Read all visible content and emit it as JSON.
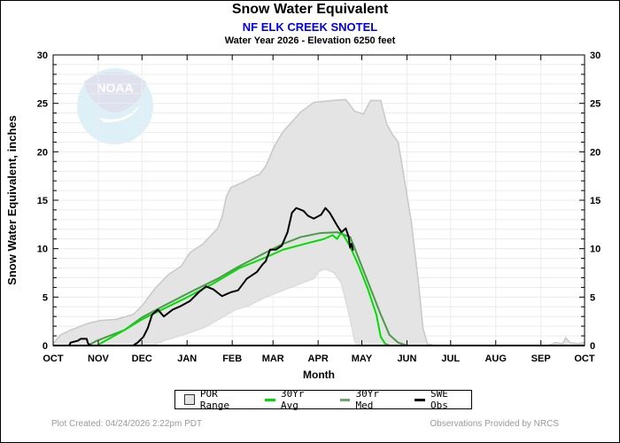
{
  "chart_data": {
    "type": "area",
    "title": "Snow Water Equivalent",
    "subtitle": "NF ELK CREEK SNOTEL",
    "subtitle2": "Water Year 2026 -  Elevation 6250 feet",
    "xlabel": "Month",
    "ylabel": "Snow Water Equivalent, inches",
    "xlim": [
      0,
      365
    ],
    "ylim": [
      0,
      30
    ],
    "yticks": [
      0,
      5,
      10,
      15,
      20,
      25,
      30
    ],
    "ytick_labels": [
      "0",
      "5",
      "10",
      "15",
      "20",
      "25",
      "30"
    ],
    "month_ticks": [
      {
        "day": 0,
        "label": "OCT"
      },
      {
        "day": 31,
        "label": "NOV"
      },
      {
        "day": 61,
        "label": "DEC"
      },
      {
        "day": 92,
        "label": "JAN"
      },
      {
        "day": 123,
        "label": "FEB"
      },
      {
        "day": 151,
        "label": "MAR"
      },
      {
        "day": 182,
        "label": "APR"
      },
      {
        "day": 212,
        "label": "MAY"
      },
      {
        "day": 243,
        "label": "JUN"
      },
      {
        "day": 273,
        "label": "JUL"
      },
      {
        "day": 304,
        "label": "AUG"
      },
      {
        "day": 335,
        "label": "SEP"
      },
      {
        "day": 365,
        "label": "OCT"
      }
    ],
    "grid": true,
    "legend_position": "bottom",
    "series": [
      {
        "name": "POR Range",
        "kind": "band",
        "color": "#e4e4e4",
        "edge_color": "#c8c8c8",
        "upper": [
          [
            0,
            0.2
          ],
          [
            5,
            1.1
          ],
          [
            12,
            1.6
          ],
          [
            24,
            2.3
          ],
          [
            33,
            2.6
          ],
          [
            43,
            2.7
          ],
          [
            55,
            3.2
          ],
          [
            61,
            4.1
          ],
          [
            70,
            5.9
          ],
          [
            79,
            7.3
          ],
          [
            88,
            8.2
          ],
          [
            94,
            9.6
          ],
          [
            103,
            10.5
          ],
          [
            113,
            12.1
          ],
          [
            116,
            13.3
          ],
          [
            119,
            15.4
          ],
          [
            122,
            16.3
          ],
          [
            125,
            16.5
          ],
          [
            131,
            16.9
          ],
          [
            137,
            17.4
          ],
          [
            142,
            17.7
          ],
          [
            146,
            18.5
          ],
          [
            152,
            20.6
          ],
          [
            158,
            22.1
          ],
          [
            164,
            23.1
          ],
          [
            170,
            24.1
          ],
          [
            179,
            25.1
          ],
          [
            192,
            25.3
          ],
          [
            201,
            25.4
          ],
          [
            207,
            24.2
          ],
          [
            213,
            23.9
          ],
          [
            218,
            25.3
          ],
          [
            225,
            25.3
          ],
          [
            229,
            22.9
          ],
          [
            233,
            21.8
          ],
          [
            237,
            21.0
          ],
          [
            241,
            17.4
          ],
          [
            246,
            12.8
          ],
          [
            251,
            6.4
          ],
          [
            254,
            1.8
          ],
          [
            257,
            0.2
          ],
          [
            262,
            0
          ],
          [
            340,
            0
          ],
          [
            345,
            0.3
          ],
          [
            350,
            0.2
          ],
          [
            352,
            0.8
          ],
          [
            355,
            0.3
          ],
          [
            360,
            0.2
          ],
          [
            365,
            0.3
          ]
        ],
        "lower": [
          [
            0,
            0
          ],
          [
            68,
            0
          ],
          [
            76,
            0.5
          ],
          [
            85,
            0.9
          ],
          [
            103,
            1.8
          ],
          [
            116,
            2.9
          ],
          [
            125,
            3.7
          ],
          [
            134,
            4.1
          ],
          [
            146,
            5.0
          ],
          [
            158,
            5.7
          ],
          [
            170,
            6.4
          ],
          [
            179,
            6.9
          ],
          [
            183,
            7.7
          ],
          [
            187,
            7.9
          ],
          [
            193,
            7.5
          ],
          [
            198,
            6.4
          ],
          [
            201,
            4.6
          ],
          [
            204,
            2.7
          ],
          [
            207,
            0.5
          ],
          [
            209,
            0
          ],
          [
            365,
            0
          ]
        ]
      },
      {
        "name": "30Yr Avg",
        "kind": "line",
        "color": "#00dd00",
        "points": [
          [
            0,
            0
          ],
          [
            30,
            0
          ],
          [
            36,
            0.5
          ],
          [
            49,
            1.6
          ],
          [
            61,
            2.7
          ],
          [
            76,
            3.8
          ],
          [
            91,
            4.9
          ],
          [
            110,
            6.4
          ],
          [
            128,
            8.0
          ],
          [
            146,
            9.1
          ],
          [
            158,
            9.9
          ],
          [
            173,
            10.5
          ],
          [
            186,
            11.0
          ],
          [
            192,
            11.4
          ],
          [
            195,
            11.0
          ],
          [
            198,
            11.7
          ],
          [
            201,
            11.0
          ],
          [
            204,
            10.2
          ],
          [
            210,
            8.2
          ],
          [
            216,
            5.9
          ],
          [
            222,
            3.2
          ],
          [
            225,
            0.9
          ],
          [
            228,
            0.2
          ],
          [
            231,
            0
          ],
          [
            365,
            0
          ]
        ]
      },
      {
        "name": "30Yr Med",
        "kind": "line",
        "color": "#4a9a4a",
        "points": [
          [
            0,
            0
          ],
          [
            24,
            0
          ],
          [
            30,
            0.5
          ],
          [
            49,
            1.6
          ],
          [
            61,
            2.9
          ],
          [
            76,
            4.1
          ],
          [
            94,
            5.5
          ],
          [
            113,
            6.9
          ],
          [
            128,
            8.2
          ],
          [
            146,
            9.6
          ],
          [
            158,
            10.5
          ],
          [
            170,
            11.2
          ],
          [
            183,
            11.6
          ],
          [
            195,
            11.7
          ],
          [
            204,
            11.2
          ],
          [
            207,
            10.1
          ],
          [
            213,
            7.8
          ],
          [
            219,
            5.5
          ],
          [
            225,
            3.2
          ],
          [
            231,
            1.1
          ],
          [
            237,
            0.3
          ],
          [
            243,
            0
          ],
          [
            365,
            0
          ]
        ]
      },
      {
        "name": "SWE Obs",
        "kind": "line",
        "color": "#000000",
        "points": [
          [
            0,
            0
          ],
          [
            11,
            0
          ],
          [
            12,
            0.3
          ],
          [
            17,
            0.5
          ],
          [
            19,
            0.7
          ],
          [
            23,
            0.7
          ],
          [
            24,
            0.2
          ],
          [
            26,
            0
          ],
          [
            55,
            0
          ],
          [
            58,
            0.3
          ],
          [
            62,
            0.9
          ],
          [
            65,
            1.8
          ],
          [
            68,
            3.2
          ],
          [
            72,
            3.7
          ],
          [
            76,
            3.0
          ],
          [
            82,
            3.7
          ],
          [
            88,
            4.1
          ],
          [
            94,
            4.6
          ],
          [
            100,
            5.5
          ],
          [
            105,
            6.1
          ],
          [
            110,
            5.8
          ],
          [
            116,
            5.1
          ],
          [
            122,
            5.5
          ],
          [
            127,
            5.7
          ],
          [
            133,
            6.9
          ],
          [
            140,
            7.6
          ],
          [
            144,
            8.4
          ],
          [
            146,
            8.7
          ],
          [
            149,
            9.9
          ],
          [
            153,
            9.9
          ],
          [
            157,
            10.3
          ],
          [
            161,
            11.7
          ],
          [
            164,
            13.7
          ],
          [
            167,
            14.2
          ],
          [
            172,
            13.9
          ],
          [
            175,
            13.4
          ],
          [
            179,
            13.1
          ],
          [
            184,
            13.5
          ],
          [
            187,
            14.2
          ],
          [
            190,
            13.7
          ],
          [
            195,
            12.4
          ],
          [
            198,
            11.7
          ],
          [
            201,
            12.1
          ],
          [
            203,
            11.2
          ],
          [
            204,
            10.1
          ],
          [
            205,
            10.5
          ],
          [
            206,
            9.8
          ]
        ]
      }
    ]
  },
  "logo": {
    "text": "NOAA"
  },
  "footer": {
    "created": "Plot Created: 04/24/2026 2:22pm PDT",
    "provider": "Observations Provided by NRCS"
  }
}
